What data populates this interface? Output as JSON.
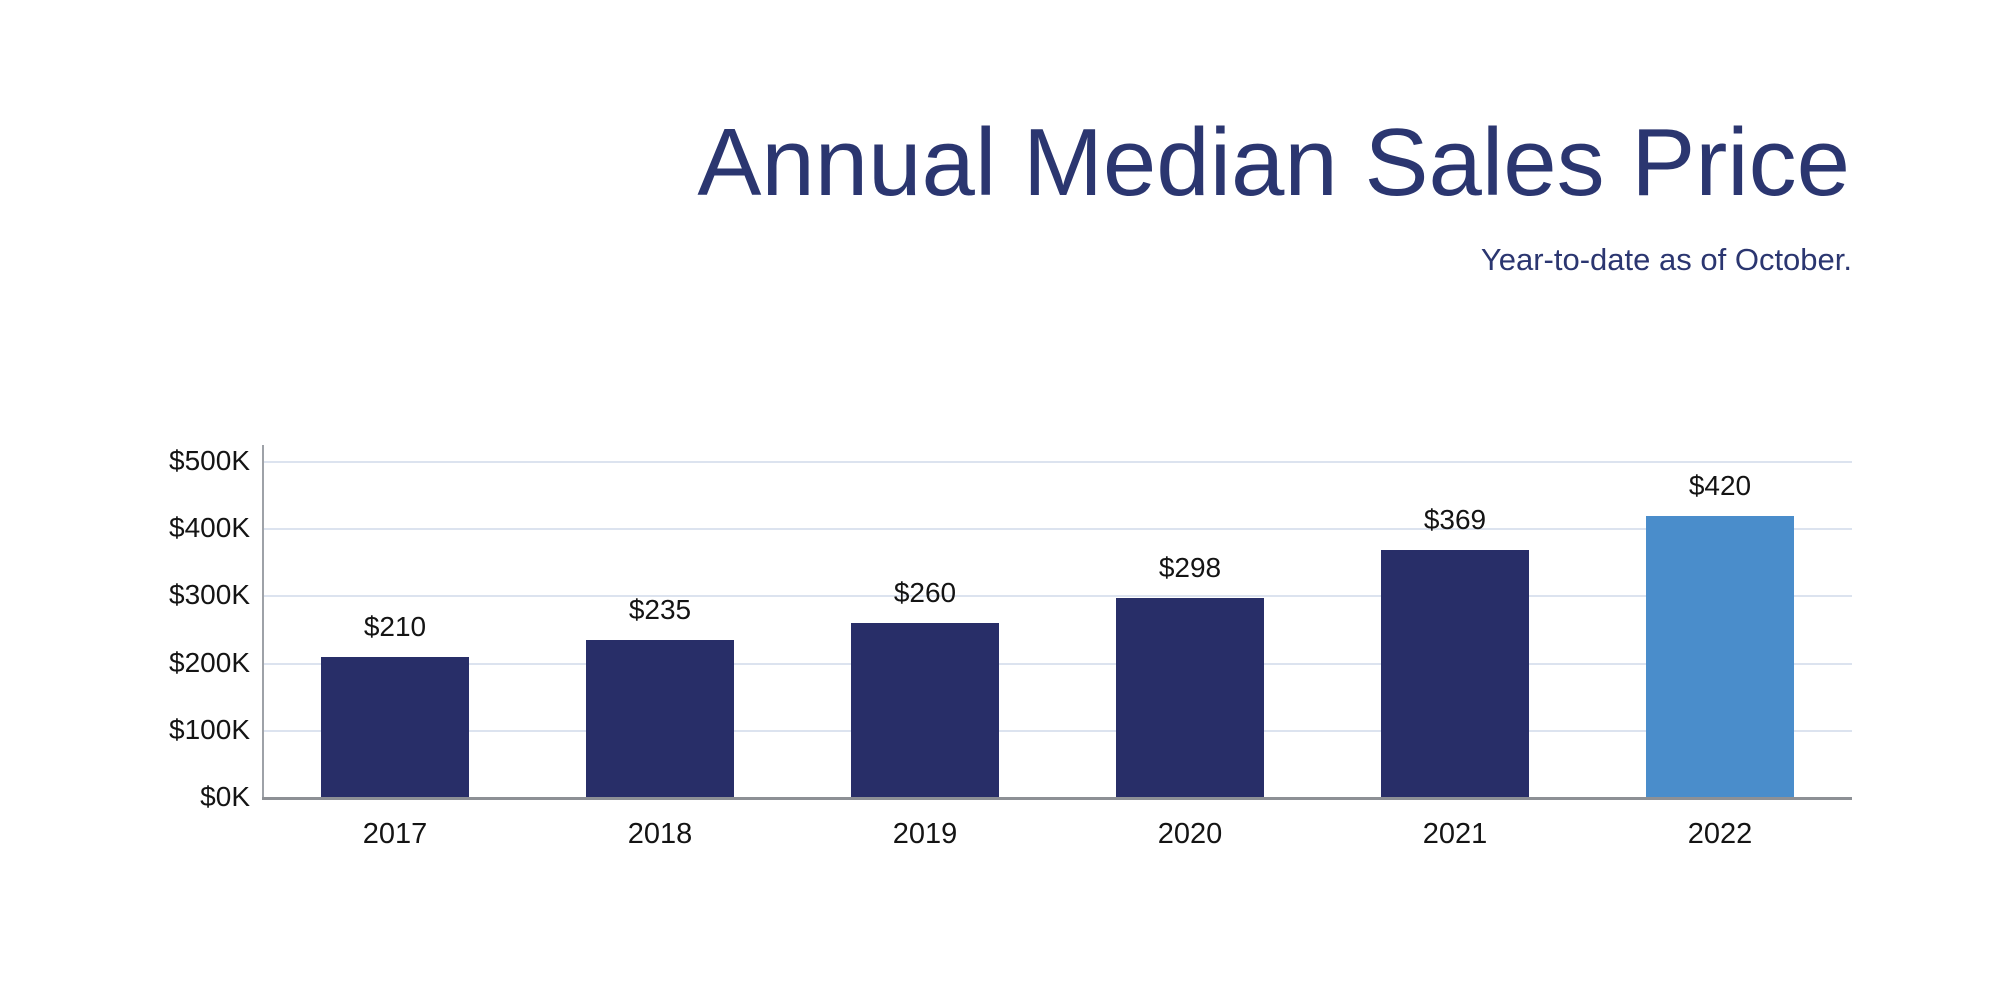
{
  "header": {
    "title": "Annual Median Sales Price",
    "subtitle": "Year-to-date as of October."
  },
  "colors": {
    "title_text": "#2B3670",
    "subtitle_text": "#2B3670",
    "bar_default": "#282E68",
    "bar_highlight": "#4A8DCB",
    "gridline": "#DCE3EF",
    "y_axis_line": "#9EA2A8",
    "x_axis_line": "#8D9095",
    "tick_text": "#141414"
  },
  "chart_data": {
    "type": "bar",
    "title": "Annual Median Sales Price",
    "subtitle": "Year-to-date as of October.",
    "categories": [
      "2017",
      "2018",
      "2019",
      "2020",
      "2021",
      "2022"
    ],
    "values": [
      210,
      235,
      260,
      298,
      369,
      420
    ],
    "value_labels": [
      "$210",
      "$235",
      "$260",
      "$298",
      "$369",
      "$420"
    ],
    "highlight_index": 5,
    "ylim": [
      0,
      500
    ],
    "ytick_values": [
      0,
      100,
      200,
      300,
      400,
      500
    ],
    "ytick_labels": [
      "$0K",
      "$100K",
      "$200K",
      "$300K",
      "$400K",
      "$500K"
    ],
    "xlabel": "",
    "ylabel": "",
    "grid": "horizontal",
    "legend": "none"
  }
}
